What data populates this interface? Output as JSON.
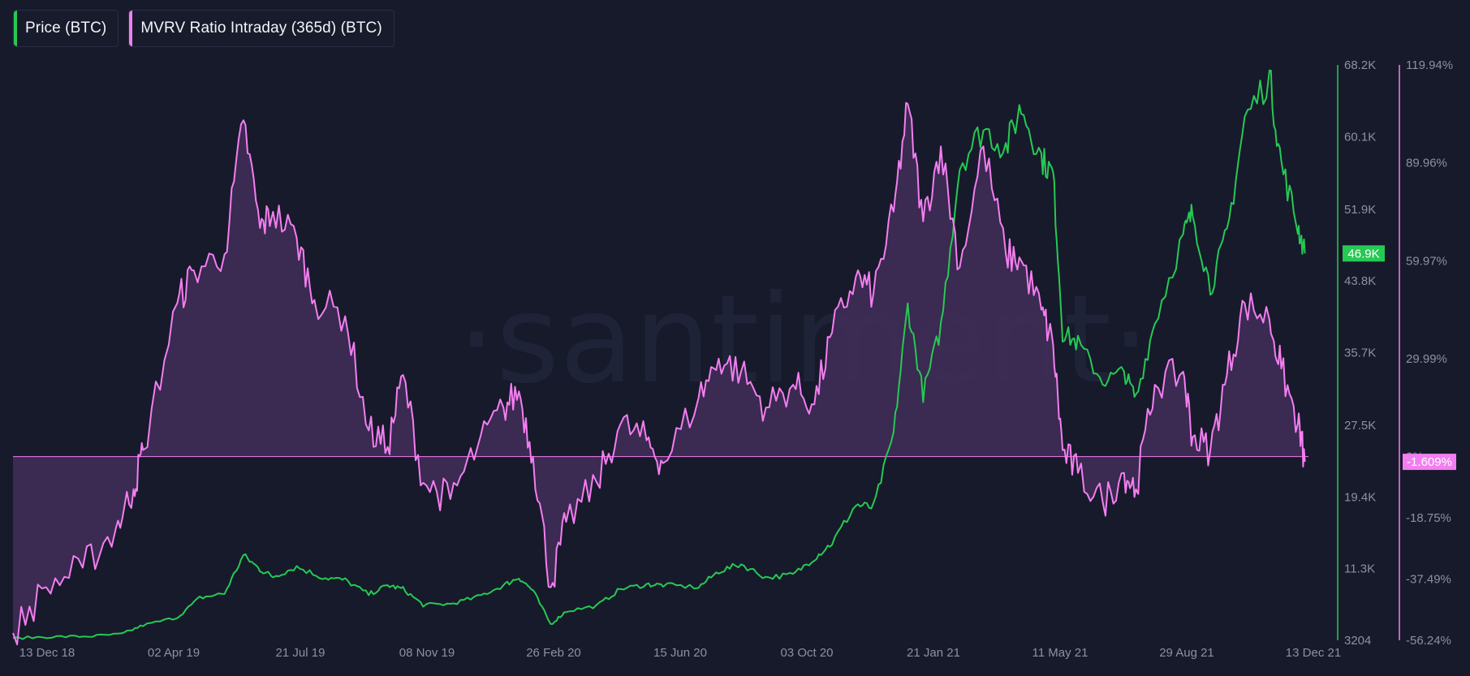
{
  "legend": {
    "items": [
      {
        "label": "Price (BTC)",
        "color": "#26c953"
      },
      {
        "label": "MVRV Ratio Intraday (365d) (BTC)",
        "color": "#f47ef1"
      }
    ]
  },
  "watermark": "·santiment·",
  "colors": {
    "background": "#171a2b",
    "price": "#26c953",
    "mvrv": "#f47ef1",
    "mvrv_fill": "#3f2c55",
    "axis_text": "#8d90a4"
  },
  "chart_data": {
    "type": "line",
    "x_tick_labels": [
      "13 Dec 18",
      "02 Apr 19",
      "21 Jul 19",
      "08 Nov 19",
      "26 Feb 20",
      "15 Jun 20",
      "03 Oct 20",
      "21 Jan 21",
      "11 May 21",
      "29 Aug 21",
      "13 Dec 21"
    ],
    "x_range": [
      "2018-12-13",
      "2021-12-13"
    ],
    "y_left": {
      "series": "Price (BTC)",
      "tick_labels": [
        "68.2K",
        "60.1K",
        "51.9K",
        "43.8K",
        "35.7K",
        "27.5K",
        "19.4K",
        "11.3K",
        "3204"
      ],
      "ticks": [
        68200,
        60100,
        51900,
        43800,
        35700,
        27500,
        19400,
        11300,
        3204
      ],
      "range": [
        3204,
        68200
      ],
      "current_value_label": "46.9K",
      "current_value": 46900
    },
    "y_right": {
      "series": "MVRV Ratio Intraday (365d) (BTC)",
      "tick_labels": [
        "119.94%",
        "89.96%",
        "59.97%",
        "29.99%",
        "0%",
        "-18.75%",
        "-37.49%",
        "-56.24%"
      ],
      "ticks": [
        119.94,
        89.96,
        59.97,
        29.99,
        0,
        -18.75,
        -37.49,
        -56.24
      ],
      "range": [
        -56.24,
        119.94
      ],
      "current_value_label": "-1.609%",
      "current_value": -1.609,
      "baseline": 0
    },
    "series": [
      {
        "name": "Price (BTC)",
        "axis": "left",
        "x": [
          "2018-12-13",
          "2019-01-15",
          "2019-02-15",
          "2019-03-15",
          "2019-04-02",
          "2019-05-01",
          "2019-05-20",
          "2019-06-10",
          "2019-06-26",
          "2019-07-10",
          "2019-07-21",
          "2019-08-10",
          "2019-09-01",
          "2019-09-20",
          "2019-10-10",
          "2019-10-26",
          "2019-11-08",
          "2019-11-25",
          "2019-12-18",
          "2020-01-10",
          "2020-02-01",
          "2020-02-14",
          "2020-02-26",
          "2020-03-12",
          "2020-03-25",
          "2020-04-20",
          "2020-05-10",
          "2020-06-01",
          "2020-06-15",
          "2020-07-15",
          "2020-08-01",
          "2020-08-20",
          "2020-09-10",
          "2020-10-03",
          "2020-10-21",
          "2020-11-05",
          "2020-11-25",
          "2020-12-10",
          "2020-12-27",
          "2021-01-08",
          "2021-01-21",
          "2021-02-05",
          "2021-02-21",
          "2021-03-13",
          "2021-04-01",
          "2021-04-14",
          "2021-05-01",
          "2021-05-11",
          "2021-05-19",
          "2021-06-01",
          "2021-06-22",
          "2021-07-10",
          "2021-07-20",
          "2021-08-05",
          "2021-08-29",
          "2021-09-06",
          "2021-09-21",
          "2021-10-05",
          "2021-10-20",
          "2021-11-10",
          "2021-11-20",
          "2021-12-04",
          "2021-12-10"
        ],
        "y": [
          3450,
          3600,
          3650,
          3900,
          4900,
          5800,
          8000,
          8500,
          12800,
          11200,
          10400,
          11500,
          10300,
          10000,
          8400,
          9400,
          9000,
          7200,
          7300,
          8100,
          9400,
          10300,
          8800,
          5000,
          6500,
          7100,
          9000,
          9500,
          9450,
          9200,
          11000,
          11800,
          10300,
          10600,
          12500,
          14200,
          18500,
          18200,
          26500,
          41000,
          31000,
          38500,
          57000,
          61000,
          58800,
          63500,
          57700,
          55800,
          38000,
          36700,
          32500,
          33500,
          30500,
          39200,
          48900,
          51500,
          43000,
          49000,
          62000,
          66900,
          57000,
          50000,
          46900
        ]
      },
      {
        "name": "MVRV Ratio Intraday (365d) (BTC)",
        "axis": "right",
        "x": [
          "2018-12-13",
          "2019-01-10",
          "2019-02-10",
          "2019-03-10",
          "2019-03-25",
          "2019-04-02",
          "2019-05-01",
          "2019-05-15",
          "2019-06-10",
          "2019-06-26",
          "2019-07-10",
          "2019-07-21",
          "2019-08-10",
          "2019-08-25",
          "2019-09-20",
          "2019-10-10",
          "2019-10-26",
          "2019-11-08",
          "2019-11-25",
          "2019-12-18",
          "2020-01-10",
          "2020-02-01",
          "2020-02-14",
          "2020-02-26",
          "2020-03-12",
          "2020-03-25",
          "2020-04-20",
          "2020-05-10",
          "2020-06-01",
          "2020-06-15",
          "2020-07-15",
          "2020-08-01",
          "2020-08-20",
          "2020-09-10",
          "2020-10-03",
          "2020-10-21",
          "2020-11-05",
          "2020-11-25",
          "2020-12-10",
          "2020-12-27",
          "2021-01-08",
          "2021-01-21",
          "2021-02-05",
          "2021-02-21",
          "2021-03-13",
          "2021-04-01",
          "2021-04-14",
          "2021-05-01",
          "2021-05-11",
          "2021-05-19",
          "2021-06-01",
          "2021-06-22",
          "2021-07-10",
          "2021-07-20",
          "2021-08-05",
          "2021-08-29",
          "2021-09-06",
          "2021-09-21",
          "2021-10-05",
          "2021-10-20",
          "2021-11-10",
          "2021-11-20",
          "2021-12-04",
          "2021-12-10"
        ],
        "y": [
          -54,
          -40,
          -34,
          -22,
          -10,
          2,
          47,
          57,
          62,
          103,
          70,
          75,
          67,
          48,
          43,
          8,
          3,
          25,
          -8,
          -13,
          3,
          15,
          20,
          0,
          -40,
          -20,
          -8,
          10,
          5,
          -2,
          18,
          30,
          26,
          15,
          22,
          16,
          38,
          55,
          50,
          75,
          108,
          72,
          95,
          58,
          95,
          62,
          60,
          45,
          34,
          2,
          -5,
          -14,
          -5,
          -10,
          22,
          26,
          6,
          2,
          25,
          47,
          42,
          27,
          10,
          -1.609
        ]
      }
    ]
  }
}
